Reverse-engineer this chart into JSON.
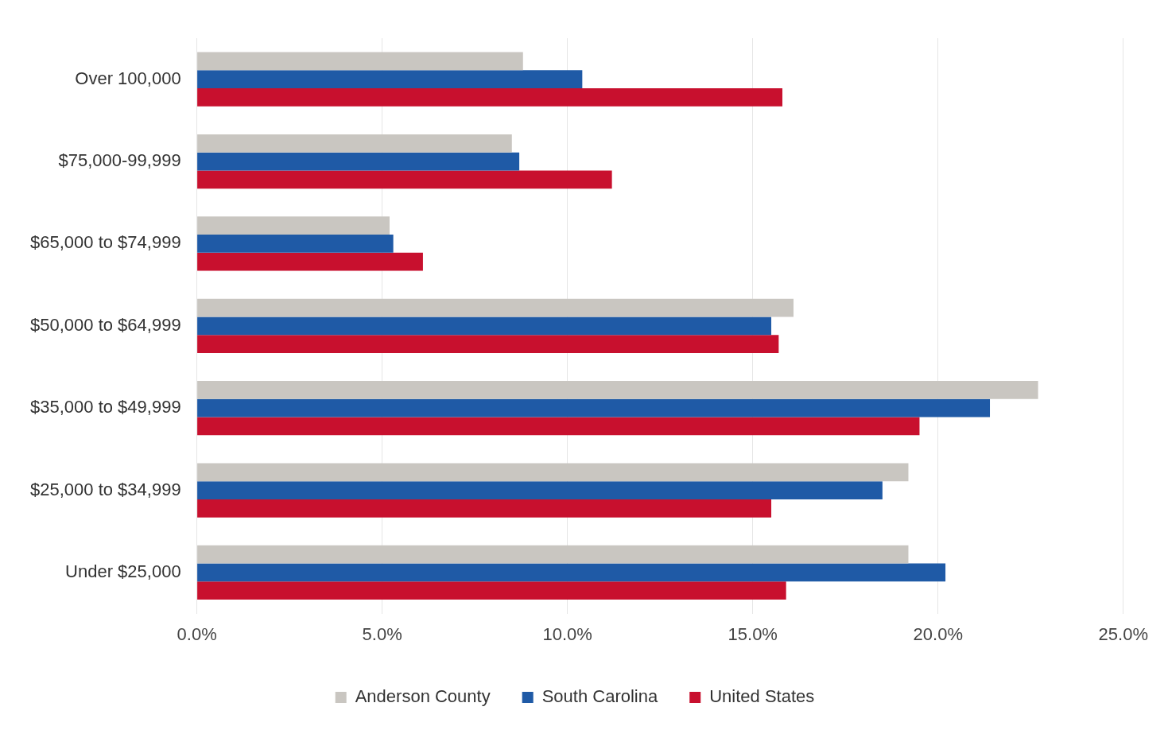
{
  "chart_data": {
    "type": "bar",
    "orientation": "horizontal",
    "categories": [
      "Over 100,000",
      "$75,000-99,999",
      "$65,000 to $74,999",
      "$50,000 to $64,999",
      "$35,000 to $49,999",
      "$25,000 to $34,999",
      "Under $25,000"
    ],
    "series": [
      {
        "name": "Anderson County",
        "color": "#c9c6c1",
        "values": [
          8.8,
          8.5,
          5.2,
          16.1,
          22.7,
          19.2,
          19.2
        ]
      },
      {
        "name": "South Carolina",
        "color": "#1f5aa6",
        "values": [
          10.4,
          8.7,
          5.3,
          15.5,
          21.4,
          18.5,
          20.2
        ]
      },
      {
        "name": "United States",
        "color": "#c8102e",
        "values": [
          15.8,
          11.2,
          6.1,
          15.7,
          19.5,
          15.5,
          15.9
        ]
      }
    ],
    "xlim": [
      0,
      25
    ],
    "xticks": [
      {
        "value": 0,
        "label": "0.0%"
      },
      {
        "value": 5,
        "label": "5.0%"
      },
      {
        "value": 10,
        "label": "10.0%"
      },
      {
        "value": 15,
        "label": "15.0%"
      },
      {
        "value": 20,
        "label": "20.0%"
      },
      {
        "value": 25,
        "label": "25.0%"
      }
    ],
    "grid": "x",
    "legend": "bottom"
  }
}
